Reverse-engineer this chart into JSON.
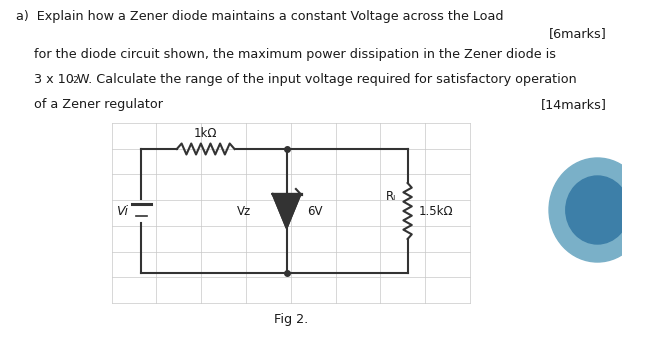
{
  "title_a": "a)  Explain how a Zener diode maintains a constant Voltage across the Load",
  "marks_6": "[6marks]",
  "body_text_1": "for the diode circuit shown, the maximum power dissipation in the Zener diode is",
  "body_text_2": "3 x 10",
  "body_text_2_exp": "-2",
  "body_text_2_end": "W. Calculate the range of the input voltage required for satisfactory operation",
  "body_text_3": "of a Zener regulator",
  "marks_14": "[14marks]",
  "fig_label": "Fig 2.",
  "resistor_label": "1kΩ",
  "vi_label": "Vi",
  "vz_label": "Vz",
  "zener_voltage": "6V",
  "rl_label": "Rₗ",
  "rl_value": "1.5kΩ",
  "bg_color": "#ffffff",
  "text_color": "#1a1a1a",
  "circuit_color": "#333333",
  "grid_color": "#c8c8c8",
  "circle_color_outer": "#7ab0c8",
  "circle_color_inner": "#3d7fa8"
}
